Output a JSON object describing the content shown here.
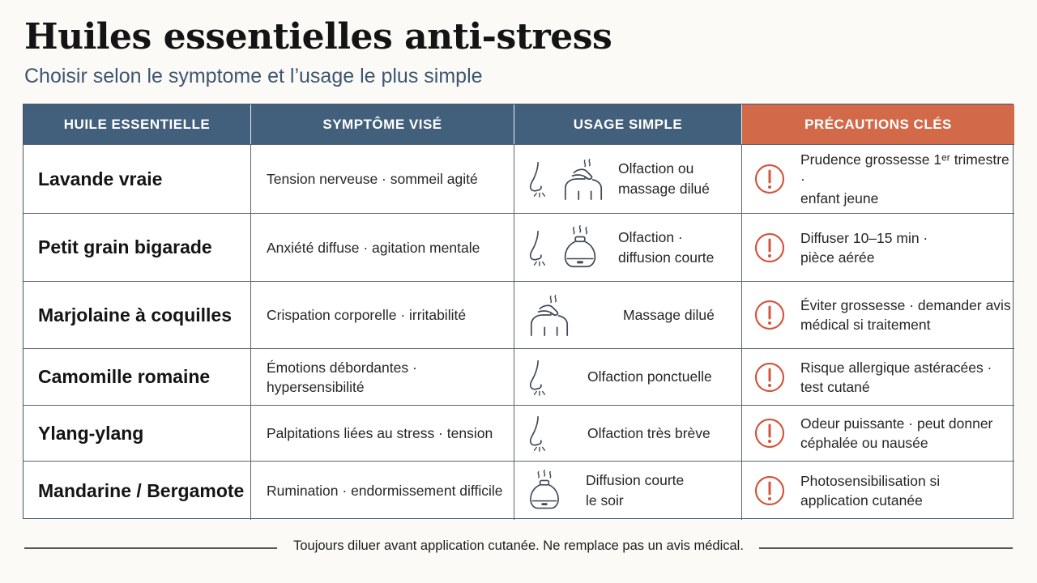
{
  "header": {
    "title": "Huiles essentielles anti-stress",
    "subtitle": "Choisir selon le symptome et l’usage le plus simple"
  },
  "table": {
    "columns": [
      "HUILE ESSENTIELLE",
      "SYMPTÔME VISÉ",
      "USAGE SIMPLE",
      "PRÉCAUTIONS CLÉS"
    ],
    "rows": [
      {
        "oil": "Lavande vraie",
        "symptom": "Tension nerveuse · sommeil agité",
        "usage_line1": "Olfaction ou",
        "usage_line2": "massage dilué",
        "usage_icons": [
          "nose-icon",
          "massage-icon"
        ],
        "precaution_line1": "Prudence grossesse 1ᵉʳ trimestre ·",
        "precaution_line2": "enfant jeune"
      },
      {
        "oil": "Petit grain bigarade",
        "symptom": "Anxiété diffuse · agitation mentale",
        "usage_line1": "Olfaction ·",
        "usage_line2": "diffusion courte",
        "usage_icons": [
          "nose-icon",
          "diffuser-icon"
        ],
        "precaution_line1": "Diffuser 10–15 min ·",
        "precaution_line2": "pièce aérée"
      },
      {
        "oil": "Marjolaine à coquilles",
        "symptom": "Crispation corporelle · irritabilité",
        "usage_line1": "Massage dilué",
        "usage_line2": "",
        "usage_icons": [
          "massage-icon"
        ],
        "precaution_line1": "Éviter grossesse · demander avis",
        "precaution_line2": "médical si traitement"
      },
      {
        "oil": "Camomille romaine",
        "symptom_line1": "Émotions débordantes ·",
        "symptom_line2": "hypersensibilité",
        "usage_line1": "Olfaction ponctuelle",
        "usage_line2": "",
        "usage_icons": [
          "nose-icon"
        ],
        "precaution_line1": "Risque allergique astéracées ·",
        "precaution_line2": "test cutané"
      },
      {
        "oil": "Ylang-ylang",
        "symptom": "Palpitations liées au stress · tension",
        "usage_line1": "Olfaction très brève",
        "usage_line2": "",
        "usage_icons": [
          "nose-icon"
        ],
        "precaution_line1": "Odeur puissante · peut donner",
        "precaution_line2": "céphalée ou nausée"
      },
      {
        "oil": "Mandarine / Bergamote",
        "symptom": "Rumination · endormissement difficile",
        "usage_line1": "Diffusion courte",
        "usage_line2": "le soir",
        "usage_icons": [
          "diffuser-icon"
        ],
        "precaution_line1": "Photosensibilisation si",
        "precaution_line2": "application cutanée"
      }
    ]
  },
  "footer": {
    "note": "Toujours diluer avant application cutanée. Ne remplace pas un avis médical."
  },
  "colors": {
    "header_bg": "#42607c",
    "precaution_header_bg": "#d26a4a",
    "warning_icon": "#d2573e",
    "icon_stroke": "#3e4a57"
  }
}
